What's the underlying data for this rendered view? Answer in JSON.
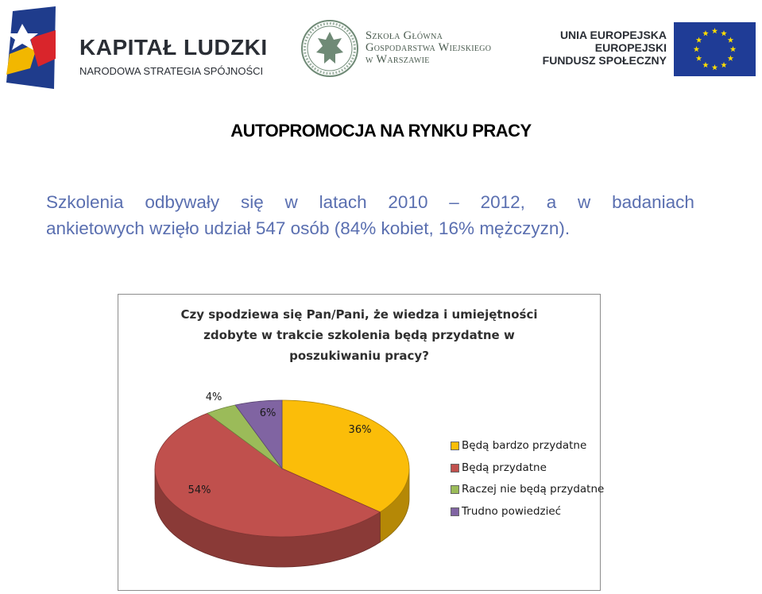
{
  "logos": {
    "kapital_ludzki": {
      "title": "KAPITAŁ LUDZKI",
      "subtitle": "NARODOWA STRATEGIA SPÓJNOŚCI"
    },
    "sggw": {
      "lines": [
        "Szkoła Główna",
        "Gospodarstwa Wiejskiego",
        "w Warszawie"
      ]
    },
    "eu": {
      "lines": [
        "UNIA EUROPEJSKA",
        "EUROPEJSKI",
        "FUNDUSZ SPOŁECZNY"
      ]
    }
  },
  "page": {
    "title": "AUTOPROMOCJA NA RYNKU PRACY",
    "intro_line1_words": [
      "Szkolenia",
      "odbywały",
      "się",
      "w",
      "latach",
      "2010",
      "–",
      "2012,",
      "a",
      "w",
      "badaniach"
    ],
    "intro_line2": "ankietowych wzięło udział 547 osób (84% kobiet, 16% mężczyzn)."
  },
  "colors": {
    "intro_text": "#5a6fb0",
    "eu_blue": "#1f3c96",
    "eu_star": "#ffde00"
  },
  "chart_data": {
    "type": "pie",
    "style": "3d",
    "title_lines": [
      "Czy spodziewa się Pan/Pani, że wiedza i umiejętności",
      "zdobyte w trakcie szkolenia będą przydatne w",
      "poszukiwaniu pracy?"
    ],
    "categories": [
      "Będą bardzo przydatne",
      "Będą przydatne",
      "Raczej nie będą przydatne",
      "Trudno powiedzieć"
    ],
    "values": [
      36,
      54,
      4,
      6
    ],
    "labels": [
      "36%",
      "54%",
      "4%",
      "6%"
    ],
    "colors": [
      "#fbbd09",
      "#c0504d",
      "#9bbb59",
      "#8064a2"
    ],
    "legend_position": "right"
  }
}
